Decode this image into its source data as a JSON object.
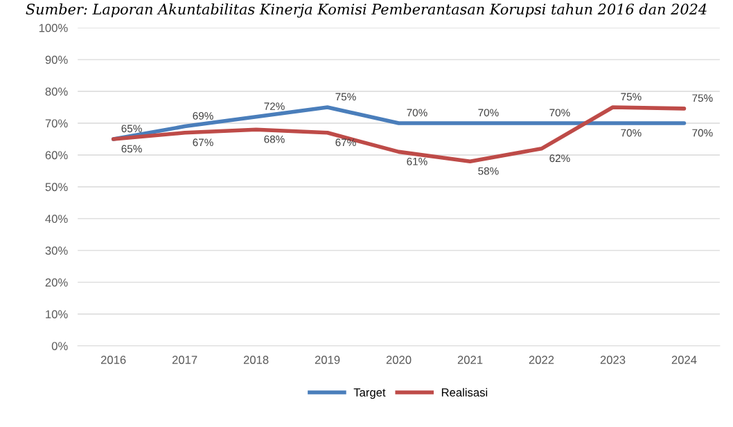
{
  "chart_data": {
    "type": "line",
    "annotations": [
      "Sumber: Laporan Akuntabilitas Kinerja Komisi Pemberantasan Korupsi tahun 2016 dan 2024"
    ],
    "categories": [
      "2016",
      "2017",
      "2018",
      "2019",
      "2020",
      "2021",
      "2022",
      "2023",
      "2024"
    ],
    "series": [
      {
        "name": "Target",
        "color": "#4a7ebb",
        "values": [
          65,
          69,
          72,
          75,
          70,
          70,
          70,
          70,
          70
        ],
        "value_labels": [
          "65%",
          "69%",
          "72%",
          "75%",
          "70%",
          "70%",
          "70%",
          "70%",
          "70%"
        ]
      },
      {
        "name": "Realisasi",
        "color": "#be4b48",
        "values": [
          65,
          67,
          68,
          67,
          61,
          58,
          62,
          75,
          74.6
        ],
        "value_labels": [
          "65%",
          "67%",
          "68%",
          "67%",
          "61%",
          "58%",
          "62%",
          "75%",
          "75%"
        ]
      }
    ],
    "ylim": [
      0,
      100
    ],
    "yticks": [
      {
        "value": 0,
        "label": "0%"
      },
      {
        "value": 10,
        "label": "10%"
      },
      {
        "value": 20,
        "label": "20%"
      },
      {
        "value": 30,
        "label": "30%"
      },
      {
        "value": 40,
        "label": "40%"
      },
      {
        "value": 50,
        "label": "50%"
      },
      {
        "value": 60,
        "label": "60%"
      },
      {
        "value": 70,
        "label": "70%"
      },
      {
        "value": 80,
        "label": "80%"
      },
      {
        "value": 90,
        "label": "90%"
      },
      {
        "value": 100,
        "label": "100%"
      }
    ],
    "grid": "y",
    "legend": "bottom",
    "marker": "none",
    "line_style": "solid"
  }
}
